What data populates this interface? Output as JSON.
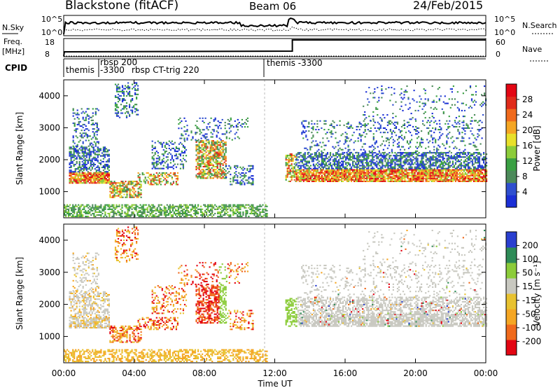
{
  "header": {
    "station": "Blackstone (fitACF)",
    "beam": "Beam 06",
    "date": "24/Feb/2015"
  },
  "top_panels": {
    "nsky_label": "N.Sky",
    "nsky_ticks": [
      "10^5",
      "10^0"
    ],
    "nsearch_label": "N.Search",
    "nsearch_ticks": [
      "10^5",
      "10^0"
    ],
    "freq_label": "Freq.",
    "freq_unit": "[MHz]",
    "freq_ticks": [
      "18",
      "8"
    ],
    "nave_label": "Nave",
    "nave_ticks": [
      "60",
      "0"
    ],
    "cpid_label": "CPID",
    "cpid_entries": [
      {
        "start_hour": 0.0,
        "label": "themis"
      },
      {
        "start_hour": 1.7,
        "label": "rbsp 200"
      },
      {
        "start_hour": 1.7,
        "label": "-3300"
      },
      {
        "start_hour": 3.6,
        "label": "rbsp CT-trig 220"
      },
      {
        "start_hour": 11.6,
        "label": "themis -3300"
      }
    ],
    "freq_step_hour": 13.0
  },
  "chart_data": [
    {
      "type": "heatmap",
      "name": "power",
      "ylabel": "Slant Range [km]",
      "yticks": [
        1000,
        2000,
        3000,
        4000
      ],
      "ylim": [
        180,
        4500
      ],
      "xlim": [
        0,
        24
      ],
      "colorbar_label": "Power [dB]",
      "colorbar_ticks": [
        "4",
        "8",
        "12",
        "16",
        "20",
        "24",
        "28"
      ],
      "colors": [
        "#1b2fd6",
        "#2f4fcf",
        "#4c8a5a",
        "#3aa043",
        "#8ccc3a",
        "#e8e02a",
        "#f5a623",
        "#f06a1c",
        "#e02b1a",
        "#e30613"
      ]
    },
    {
      "type": "heatmap",
      "name": "velocity",
      "ylabel": "Slant Range [km]",
      "yticks": [
        1000,
        2000,
        3000,
        4000
      ],
      "ylim": [
        180,
        4500
      ],
      "xlim": [
        0,
        24
      ],
      "xlabel": "Time UT",
      "xticks": [
        "00:00",
        "04:00",
        "08:00",
        "12:00",
        "16:00",
        "20:00",
        "00:00"
      ],
      "colorbar_label": "Velocity [m s⁻¹]",
      "colorbar_ticks": [
        "-200",
        "-100",
        "-50",
        "-15",
        "15",
        "50",
        "100",
        "200"
      ],
      "colors": [
        "#e30613",
        "#f06a1c",
        "#f5a623",
        "#e8c230",
        "#c8c8c0",
        "#8ccc3a",
        "#2e8b57",
        "#2a3fd0"
      ]
    }
  ]
}
